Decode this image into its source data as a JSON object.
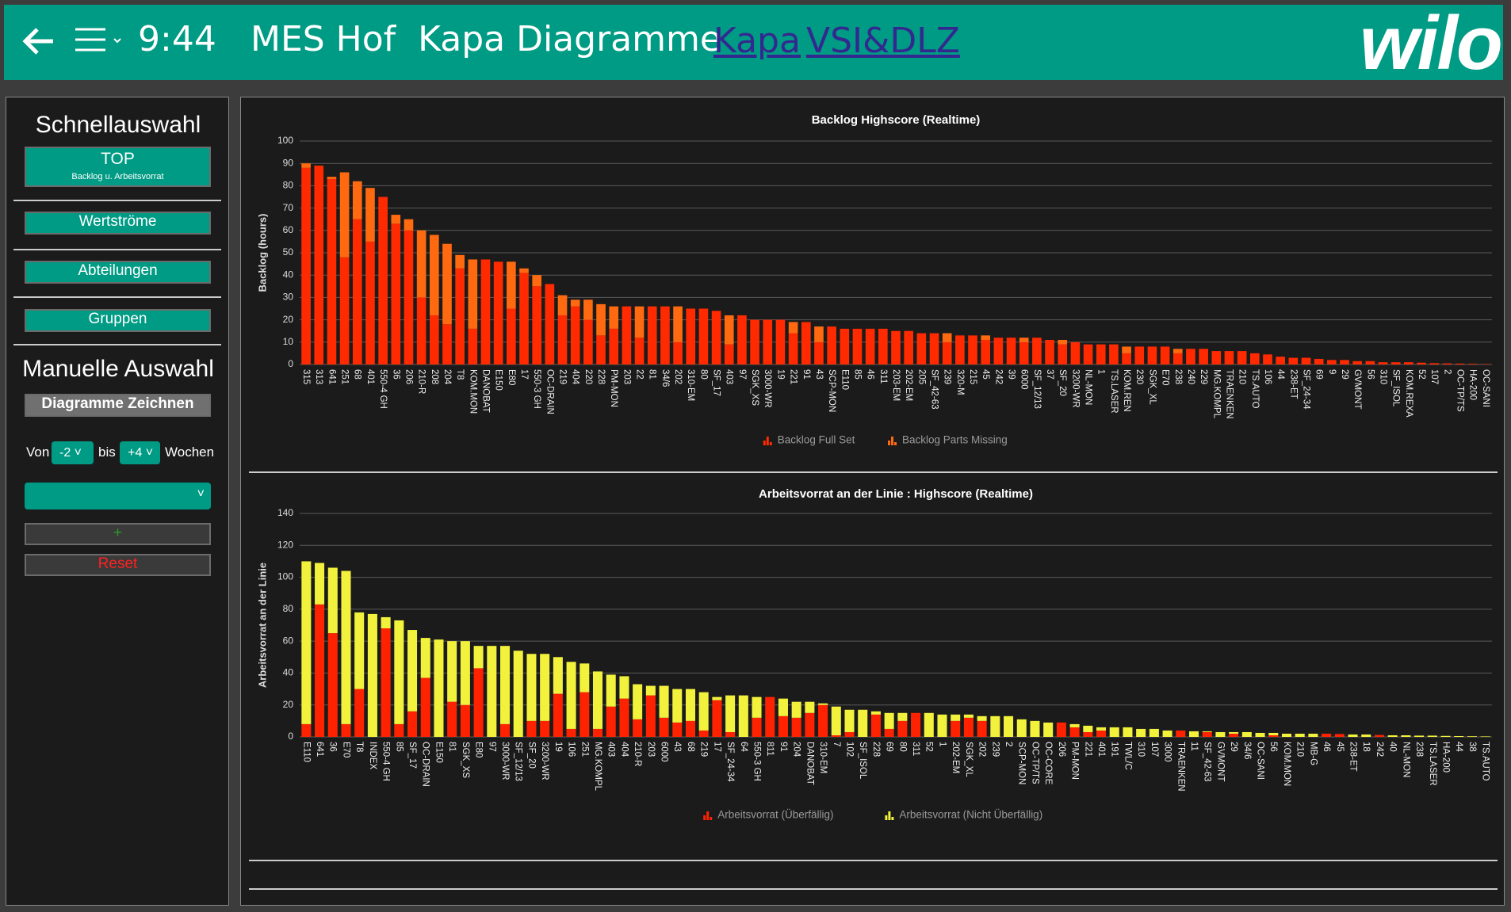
{
  "header": {
    "time": "9:44",
    "title": "MES Hof  Kapa Diagramme",
    "links": [
      "Kapa",
      "VSI&DLZ"
    ],
    "logo": "wilo"
  },
  "sidebar": {
    "quick_title": "Schnellauswahl",
    "top_button": "TOP",
    "top_sub": "Backlog u. Arbeitsvorrat",
    "buttons": [
      "Wertströme",
      "Abteilungen",
      "Gruppen"
    ],
    "manual_title": "Manuelle Auswahl",
    "draw_button": "Diagramme Zeichnen",
    "from_label": "Von",
    "from_value": "-2",
    "to_label": "bis",
    "to_value": "+4",
    "weeks_label": "Wochen",
    "add_button": "+",
    "reset_button": "Reset"
  },
  "chart_data": [
    {
      "type": "bar",
      "stacked": true,
      "title": "Backlog Highscore (Realtime)",
      "y_label": "Backlog (hours)",
      "ylim": [
        0,
        100
      ],
      "yticks": [
        0,
        10,
        20,
        30,
        40,
        50,
        60,
        70,
        80,
        90,
        100
      ],
      "grid": true,
      "legend": "bottom",
      "categories": [
        "315",
        "313",
        "641",
        "251",
        "68",
        "401",
        "550-4 GH",
        "36",
        "206",
        "210-R",
        "208",
        "204",
        "T8",
        "KOM.MON",
        "DANOBAT",
        "E150",
        "E80",
        "17",
        "550-3 GH",
        "OC-DRAIN",
        "219",
        "404",
        "220",
        "228",
        "PM-MON",
        "203",
        "22",
        "81",
        "34/6",
        "202",
        "310-EM",
        "80",
        "SF_17",
        "403",
        "97",
        "SGK_XS",
        "3000-WR",
        "19",
        "221",
        "91",
        "43",
        "SCP-MON",
        "E110",
        "85",
        "46",
        "311",
        "203-EM",
        "202-EM",
        "205",
        "SF_42-63",
        "239",
        "320-M",
        "215",
        "45",
        "242",
        "39",
        "6000",
        "SF_12/13",
        "37",
        "SF_20",
        "3200-WR",
        "NL-MON",
        "1",
        "TS.LASER",
        "KOM.REN",
        "230",
        "SGK_XL",
        "E70",
        "238",
        "240",
        "229",
        "MG.KOMPL",
        "TRAENKEN",
        "210",
        "TS.AUTO",
        "106",
        "44",
        "238-ET",
        "SF_24-34",
        "69",
        "9",
        "29",
        "GVMONT",
        "56",
        "310",
        "SF_ISOL",
        "KOM.REXA",
        "52",
        "107",
        "2",
        "OC-TP/TS",
        "HA-200",
        "OC-SANI"
      ],
      "series": [
        {
          "name": "Backlog Full Set",
          "color": "#ff2a00",
          "values": [
            88,
            89,
            83,
            48,
            65,
            55,
            75,
            63,
            60,
            30,
            22,
            18,
            43,
            16,
            47,
            46,
            25,
            41,
            35,
            36,
            22,
            26,
            20,
            13,
            16,
            26,
            12,
            26,
            26,
            10,
            25,
            25,
            24,
            9,
            22,
            20,
            20,
            20,
            14,
            19,
            10,
            17,
            16,
            16,
            16,
            16,
            15,
            15,
            14,
            14,
            10,
            13,
            13,
            11,
            12,
            12,
            10,
            12,
            11,
            9,
            10,
            9,
            9,
            9,
            5,
            8,
            8,
            8,
            5,
            7,
            7,
            6,
            6,
            6,
            5,
            4.5,
            3.5,
            3,
            3,
            2.5,
            2,
            2,
            1.5,
            1.5,
            1,
            1,
            1,
            0.8,
            0.6,
            0.5,
            0.4,
            0.3,
            0.2
          ]
        },
        {
          "name": "Backlog Parts Missing",
          "color": "#ff6a10",
          "values": [
            2,
            0,
            1,
            38,
            17,
            24,
            0,
            4,
            5,
            30,
            36,
            36,
            6,
            31,
            0,
            0,
            21,
            2,
            5,
            0,
            9,
            3,
            9,
            14,
            10,
            0,
            14,
            0,
            0,
            16,
            0,
            0,
            0,
            13,
            0,
            0,
            0,
            0,
            5,
            0,
            7,
            0,
            0,
            0,
            0,
            0,
            0,
            0,
            0,
            0,
            4,
            0,
            0,
            2,
            0,
            0,
            2,
            0,
            0,
            2,
            0,
            0,
            0,
            0,
            3,
            0,
            0,
            0,
            2,
            0,
            0,
            0,
            0,
            0,
            0,
            0,
            0,
            0,
            0,
            0,
            0,
            0,
            0,
            0,
            0,
            0,
            0,
            0,
            0,
            0,
            0,
            0,
            0
          ]
        }
      ]
    },
    {
      "type": "bar",
      "stacked": true,
      "title": "Arbeitsvorrat an der Linie : Highscore (Realtime)",
      "y_label": "Arbeitsvorrat an der Linie",
      "ylim": [
        0,
        140
      ],
      "yticks": [
        0,
        20,
        40,
        60,
        80,
        100,
        120,
        140
      ],
      "grid": true,
      "legend": "bottom",
      "categories": [
        "E110",
        "641",
        "36",
        "E70",
        "T8",
        "INDEX",
        "550-4 GH",
        "85",
        "SF_17",
        "OC-DRAIN",
        "E150",
        "81",
        "SGK_XS",
        "E80",
        "97",
        "3000-WR",
        "SF_12/13",
        "SF_20",
        "3200-WR",
        "19",
        "106",
        "251",
        "MG.KOMPL",
        "403",
        "404",
        "210-R",
        "203",
        "6000",
        "43",
        "68",
        "219",
        "17",
        "SF_24-34",
        "64",
        "550-3 GH",
        "811",
        "91",
        "204",
        "DANOBAT",
        "310-EM",
        "7",
        "102",
        "SF_ISOL",
        "228",
        "69",
        "80",
        "311",
        "52",
        "1",
        "202-EM",
        "SGK_XL",
        "202",
        "239",
        "2",
        "SCP-MON",
        "OC-TP/TS",
        "OC-CORE",
        "206",
        "PM-MON",
        "221",
        "401",
        "191",
        "TWL/C",
        "310",
        "107",
        "3000",
        "TRAENKEN",
        "11",
        "SF_42-63",
        "GVMONT",
        "29",
        "34/6",
        "OC-SANI",
        "56",
        "KOM.MON",
        "210",
        "MB-G",
        "46",
        "45",
        "238-ET",
        "18",
        "242",
        "40",
        "NL-MON",
        "238",
        "TS.LASER",
        "HA-200",
        "44",
        "38",
        "TS.AUTO"
      ],
      "series": [
        {
          "name": "Arbeitsvorrat (Überfällig)",
          "color": "#ff2200",
          "values": [
            8,
            83,
            65,
            8,
            30,
            0,
            68,
            8,
            16,
            37,
            0,
            22,
            20,
            43,
            0,
            8,
            0,
            10,
            10,
            27,
            5,
            28,
            5,
            19,
            24,
            11,
            26,
            12,
            9,
            10,
            4,
            23,
            3,
            0,
            12,
            25,
            13,
            12,
            15,
            20,
            1,
            3,
            0,
            14,
            5,
            10,
            15,
            0,
            0,
            10,
            12,
            10,
            0,
            0,
            0,
            0,
            0,
            9,
            6,
            3,
            4,
            0,
            0,
            0,
            0,
            0,
            4,
            0,
            3,
            0,
            2,
            0,
            0,
            1,
            0,
            0,
            0,
            2,
            1.8,
            0,
            0,
            1.2,
            0,
            0,
            0,
            0,
            0,
            0,
            0,
            0
          ]
        },
        {
          "name": "Arbeitsvorrat (Nicht Überfällig)",
          "color": "#f2f23c",
          "values": [
            102,
            26,
            41,
            96,
            48,
            77,
            7,
            65,
            51,
            25,
            61,
            38,
            40,
            14,
            57,
            49,
            54,
            42,
            42,
            23,
            42,
            18,
            36,
            20,
            14,
            22,
            6,
            20,
            21,
            20,
            24,
            2,
            23,
            26,
            13,
            0,
            11,
            10,
            7,
            1,
            18,
            14,
            17,
            2,
            10,
            5,
            0,
            15,
            14,
            4,
            2,
            3,
            13,
            13,
            11,
            10,
            9,
            0,
            2,
            4,
            2,
            6,
            6,
            5,
            5,
            4,
            0,
            3.5,
            0.5,
            3,
            1,
            3,
            2.5,
            1.5,
            2,
            2,
            2,
            0,
            0,
            1.5,
            1.5,
            0,
            1,
            1,
            0.8,
            0.8,
            0.6,
            0.5,
            0.4,
            0.3
          ]
        }
      ]
    }
  ]
}
